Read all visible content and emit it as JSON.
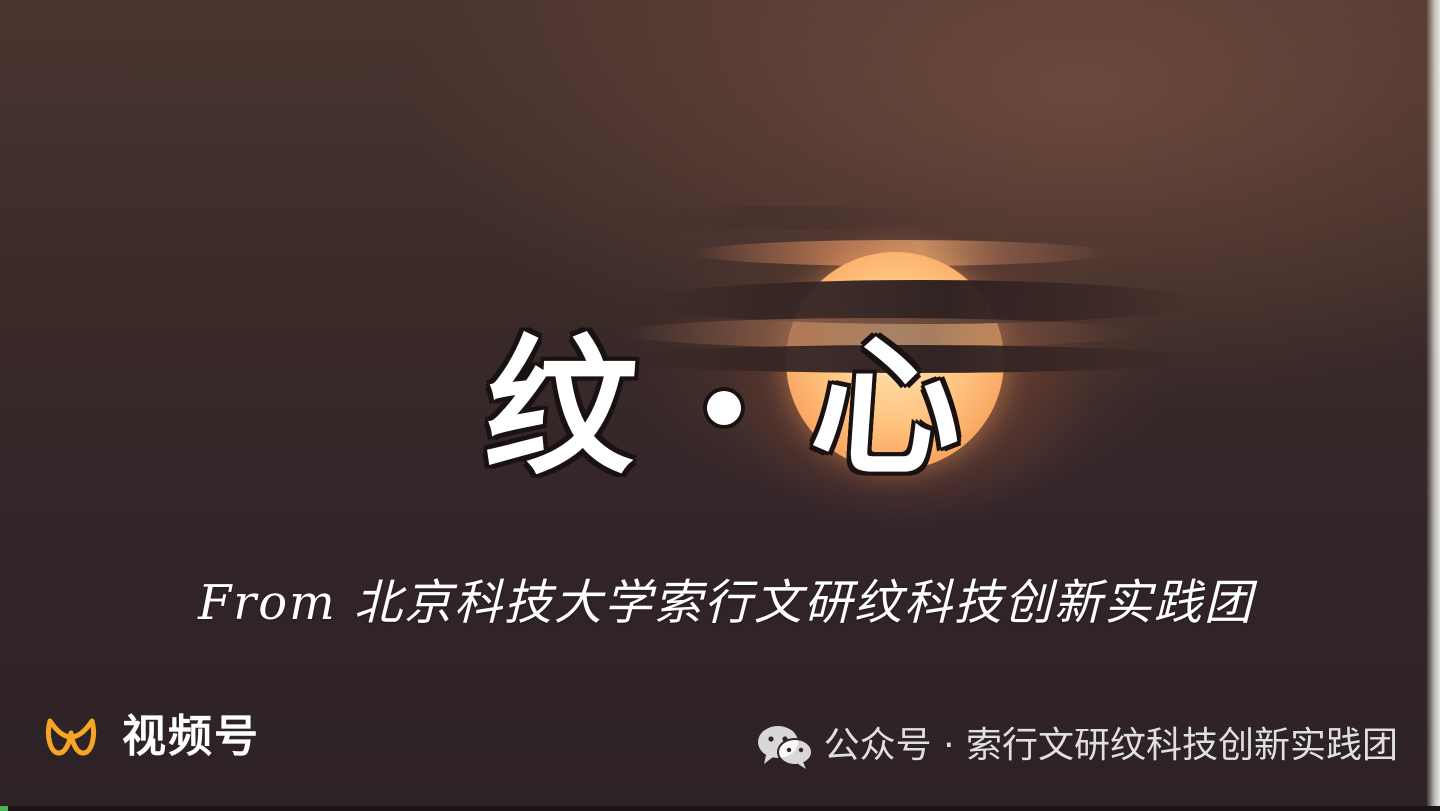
{
  "video": {
    "title_left": "纹",
    "title_right": "心",
    "subtitle": "From 北京科技大学索行文研纹科技创新实践团"
  },
  "watermark": {
    "channels_label": "视频号",
    "account_text": "公众号 · 索行文研纹科技创新实践团"
  },
  "colors": {
    "channels_logo": "#f5a623",
    "sun": "#ffc37f",
    "accent_green": "#45b35a"
  }
}
